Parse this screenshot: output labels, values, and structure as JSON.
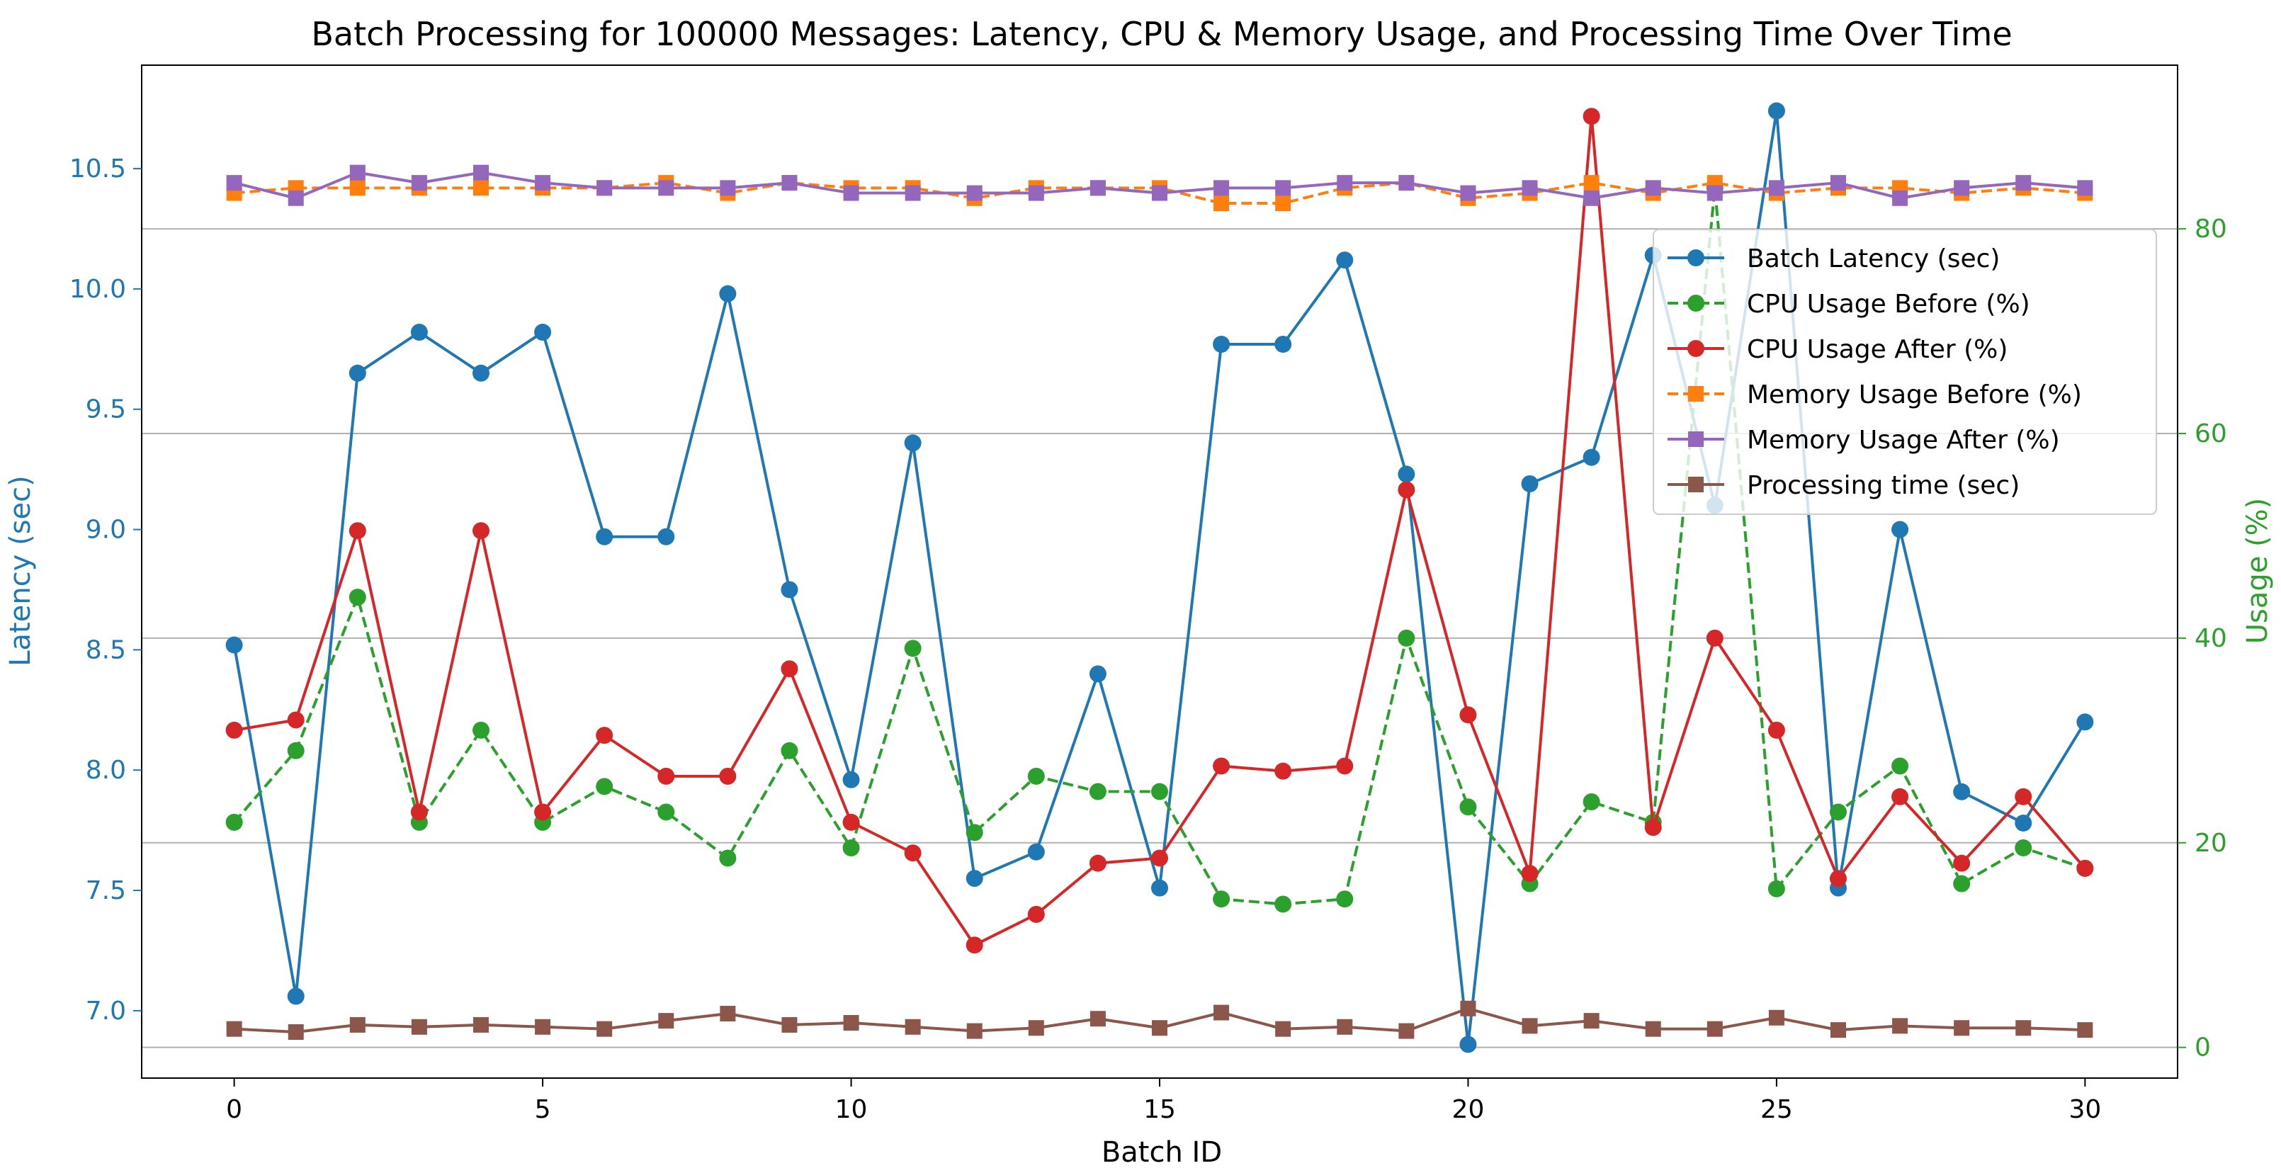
{
  "chart_data": {
    "type": "line",
    "title": "Batch Processing for 100000 Messages: Latency, CPU & Memory Usage, and Processing Time Over Time",
    "xlabel": "Batch ID",
    "ylabel_left": "Latency (sec)",
    "ylabel_right": "Usage (%)",
    "x": [
      0,
      1,
      2,
      3,
      4,
      5,
      6,
      7,
      8,
      9,
      10,
      11,
      12,
      13,
      14,
      15,
      16,
      17,
      18,
      19,
      20,
      21,
      22,
      23,
      24,
      25,
      26,
      27,
      28,
      29,
      30
    ],
    "xlim": [
      -1.5,
      31.5
    ],
    "ylim_left": [
      6.72,
      10.93
    ],
    "ylim_right": [
      -3,
      96
    ],
    "xticks": [
      0,
      5,
      10,
      15,
      20,
      25,
      30
    ],
    "xtick_labels": [
      "0",
      "5",
      "10",
      "15",
      "20",
      "25",
      "30"
    ],
    "yticks_left": [
      7.0,
      7.5,
      8.0,
      8.5,
      9.0,
      9.5,
      10.0,
      10.5
    ],
    "ytick_labels_left": [
      "7.0",
      "7.5",
      "8.0",
      "8.5",
      "9.0",
      "9.5",
      "10.0",
      "10.5"
    ],
    "yticks_right": [
      0,
      20,
      40,
      60,
      80
    ],
    "ytick_labels_right": [
      "0",
      "20",
      "40",
      "60",
      "80"
    ],
    "grid": "horizontal lines at right-axis ticks",
    "legend_position": "upper right",
    "series": [
      {
        "name": "Batch Latency (sec)",
        "axis": "left",
        "color": "#1f77b4",
        "marker": "circle",
        "linestyle": "solid",
        "values": [
          8.52,
          7.06,
          9.65,
          9.82,
          9.65,
          9.82,
          8.97,
          8.97,
          9.98,
          8.75,
          7.96,
          9.36,
          7.55,
          7.66,
          8.4,
          7.51,
          9.77,
          9.77,
          10.12,
          9.23,
          6.86,
          9.19,
          9.3,
          10.14,
          9.1,
          10.74,
          7.51,
          9.0,
          7.91,
          7.78,
          8.2
        ]
      },
      {
        "name": "CPU Usage Before (%)",
        "axis": "right",
        "color": "#2ca02c",
        "marker": "circle",
        "linestyle": "dashed",
        "values": [
          22,
          29,
          44,
          22,
          31,
          22,
          25.5,
          23,
          18.5,
          29,
          19.5,
          39,
          21,
          26.5,
          25,
          25,
          14.5,
          14,
          14.5,
          40,
          23.5,
          16,
          24,
          22,
          84,
          15.5,
          23,
          27.5,
          16,
          19.5,
          17.5
        ]
      },
      {
        "name": "CPU Usage After (%)",
        "axis": "right",
        "color": "#d62728",
        "marker": "circle",
        "linestyle": "solid",
        "values": [
          31,
          32,
          50.5,
          23,
          50.5,
          23,
          30.5,
          26.5,
          26.5,
          37,
          22,
          19,
          10,
          13,
          18,
          18.5,
          27.5,
          27,
          27.5,
          54.5,
          32.5,
          17,
          91,
          21.5,
          40,
          31,
          16.5,
          24.5,
          18,
          24.5,
          17.5
        ]
      },
      {
        "name": "Memory Usage Before (%)",
        "axis": "right",
        "color": "#ff7f0e",
        "marker": "square",
        "linestyle": "dashed",
        "values": [
          83.5,
          84,
          84,
          84,
          84,
          84,
          84,
          84.5,
          83.5,
          84.5,
          84,
          84,
          83,
          84,
          84,
          84,
          82.5,
          82.5,
          84,
          84.5,
          83,
          83.5,
          84.5,
          83.5,
          84.5,
          83.5,
          84,
          84,
          83.5,
          84,
          83.5
        ]
      },
      {
        "name": "Memory Usage After (%)",
        "axis": "right",
        "color": "#9467bd",
        "marker": "square",
        "linestyle": "solid",
        "values": [
          84.5,
          83,
          85.5,
          84.5,
          85.5,
          84.5,
          84,
          84,
          84,
          84.5,
          83.5,
          83.5,
          83.5,
          83.5,
          84,
          83.5,
          84,
          84,
          84.5,
          84.5,
          83.5,
          84,
          83,
          84,
          83.5,
          84,
          84.5,
          83,
          84,
          84.5,
          84
        ]
      },
      {
        "name": "Processing time (sec)",
        "axis": "right",
        "color": "#8c564b",
        "marker": "square",
        "linestyle": "solid",
        "values": [
          1.8,
          1.5,
          2.2,
          2,
          2.2,
          2,
          1.8,
          2.6,
          3.3,
          2.2,
          2.4,
          2,
          1.6,
          1.9,
          2.8,
          1.9,
          3.4,
          1.8,
          2,
          1.6,
          3.8,
          2.1,
          2.6,
          1.8,
          1.8,
          2.9,
          1.7,
          2.1,
          1.9,
          1.9,
          1.7
        ]
      }
    ]
  }
}
